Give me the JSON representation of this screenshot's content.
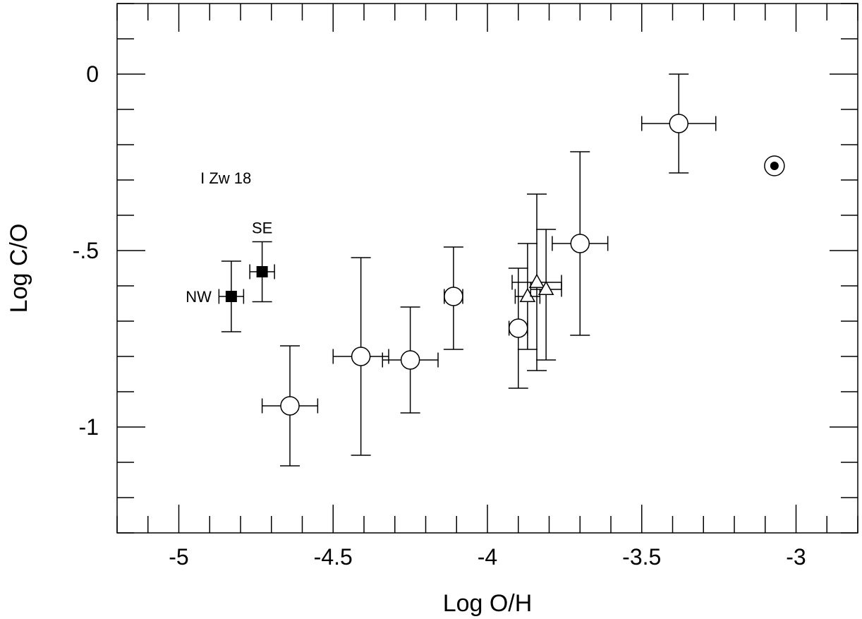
{
  "chart_data": {
    "type": "scatter",
    "xlabel": "Log O/H",
    "ylabel": "Log C/O",
    "xlim": [
      -5.2,
      -2.8
    ],
    "ylim": [
      -1.3,
      0.2
    ],
    "x_ticks": [
      {
        "value": -5,
        "label": "-5"
      },
      {
        "value": -4.5,
        "label": "-4.5"
      },
      {
        "value": -4,
        "label": "-4"
      },
      {
        "value": -3.5,
        "label": "-3.5"
      },
      {
        "value": -3,
        "label": "-3"
      }
    ],
    "y_ticks": [
      {
        "value": 0,
        "label": "0"
      },
      {
        "value": -0.5,
        "label": "-.5"
      },
      {
        "value": -1,
        "label": "-1"
      }
    ],
    "x_minor_step": 0.1,
    "y_minor_step": 0.1,
    "grid": false,
    "series": [
      {
        "marker": "filled-square",
        "points": [
          {
            "x": -4.83,
            "y": -0.63,
            "xerr": 0.04,
            "yerr": 0.1,
            "label": "NW"
          },
          {
            "x": -4.73,
            "y": -0.56,
            "xerr": 0.04,
            "yerr": 0.085,
            "label": "SE"
          }
        ]
      },
      {
        "marker": "open-circle",
        "points": [
          {
            "x": -4.64,
            "y": -0.94,
            "xerr": 0.09,
            "yerr_up": 0.17,
            "yerr_down": 0.17
          },
          {
            "x": -4.41,
            "y": -0.8,
            "xerr": 0.09,
            "yerr_up": 0.28,
            "yerr_down": 0.28
          },
          {
            "x": -4.25,
            "y": -0.81,
            "xerr": 0.09,
            "yerr_up": 0.15,
            "yerr_down": 0.15
          },
          {
            "x": -4.11,
            "y": -0.63,
            "xerr": 0.03,
            "yerr_up": 0.14,
            "yerr_down": 0.15
          },
          {
            "x": -3.9,
            "y": -0.72,
            "xerr": 0.03,
            "yerr_up": 0.17,
            "yerr_down": 0.17
          },
          {
            "x": -3.7,
            "y": -0.48,
            "xerr": 0.09,
            "yerr_up": 0.26,
            "yerr_down": 0.26
          },
          {
            "x": -3.38,
            "y": -0.14,
            "xerr": 0.12,
            "yerr_up": 0.14,
            "yerr_down": 0.14
          }
        ]
      },
      {
        "marker": "open-triangle",
        "points": [
          {
            "x": -3.87,
            "y": -0.63,
            "xerr": 0.04,
            "yerr_up": 0.15,
            "yerr_down": 0.15
          },
          {
            "x": -3.84,
            "y": -0.59,
            "xerr": 0.08,
            "yerr_up": 0.25,
            "yerr_down": 0.25
          },
          {
            "x": -3.81,
            "y": -0.61,
            "xerr": 0.05,
            "yerr_up": 0.17,
            "yerr_down": 0.2
          }
        ]
      },
      {
        "marker": "sun-symbol",
        "points": [
          {
            "x": -3.07,
            "y": -0.26
          }
        ]
      }
    ],
    "annotations": [
      {
        "text": "I Zw 18",
        "x": -4.93,
        "y": -0.31
      }
    ]
  }
}
